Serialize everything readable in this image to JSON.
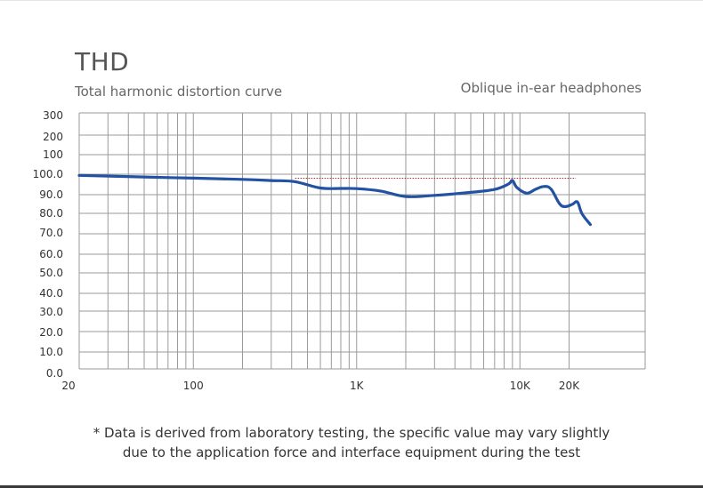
{
  "header": {
    "title": "THD",
    "subtitle": "Total harmonic distortion curve",
    "product_name": "Oblique in-ear headphones"
  },
  "footnote": {
    "line1": "* Data is derived from laboratory testing, the specific value may vary slightly",
    "line2": "due to the application force and interface equipment during the test"
  },
  "chart_data": {
    "type": "line",
    "title": "THD",
    "subtitle": "Total harmonic distortion curve",
    "xscale": "log",
    "xlim": [
      20,
      22000
    ],
    "x_ticks": [
      {
        "value": 20,
        "label": "20"
      },
      {
        "value": 100,
        "label": "100"
      },
      {
        "value": 1000,
        "label": "1K"
      },
      {
        "value": 10000,
        "label": "10K"
      },
      {
        "value": 20000,
        "label": "20K"
      }
    ],
    "y_ticks": [
      "0.0",
      "10.0",
      "20.0",
      "30.0",
      "40.0",
      "50.0",
      "60.0",
      "70.0",
      "80.0",
      "90.0",
      "100.0",
      "100",
      "200",
      "300"
    ],
    "grid": true,
    "series": [
      {
        "color": "#2352a3",
        "points": [
          [
            20,
            99.4
          ],
          [
            50,
            98.6
          ],
          [
            100,
            98.0
          ],
          [
            200,
            97.4
          ],
          [
            300,
            96.8
          ],
          [
            420,
            96.2
          ],
          [
            600,
            93.0
          ],
          [
            800,
            92.8
          ],
          [
            1000,
            92.7
          ],
          [
            1400,
            91.5
          ],
          [
            2000,
            88.7
          ],
          [
            3000,
            89.3
          ],
          [
            5000,
            90.8
          ],
          [
            7000,
            92.3
          ],
          [
            8500,
            95.0
          ],
          [
            9000,
            96.8
          ],
          [
            9600,
            93.2
          ],
          [
            11000,
            90.4
          ],
          [
            12500,
            92.4
          ],
          [
            14000,
            93.8
          ],
          [
            15500,
            92.5
          ],
          [
            17500,
            85.0
          ],
          [
            19000,
            83.6
          ],
          [
            21000,
            84.8
          ],
          [
            22500,
            85.9
          ],
          [
            24000,
            80.0
          ],
          [
            27000,
            74.5
          ]
        ]
      }
    ],
    "reference_line": {
      "value": 98.0,
      "x_start": 420,
      "x_end": 22000,
      "color": "#b22a2a",
      "style": "dotted"
    }
  }
}
